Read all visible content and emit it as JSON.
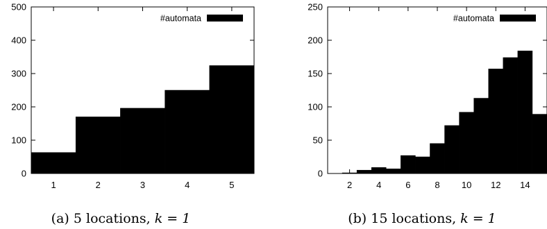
{
  "chart_data": [
    {
      "type": "bar",
      "caption": "(a) 5 locations,",
      "caption_math": "k = 1",
      "legend": "#automata",
      "legend_position": "top-right",
      "grid": false,
      "xlim": [
        0.5,
        5.5
      ],
      "ylim": [
        0,
        500
      ],
      "xticks": [
        1,
        2,
        3,
        4,
        5
      ],
      "yticks": [
        0,
        100,
        200,
        300,
        400,
        500
      ],
      "x": [
        1,
        2,
        3,
        4,
        5
      ],
      "values": [
        63,
        170,
        196,
        250,
        324
      ],
      "bar_color": "#000000"
    },
    {
      "type": "bar",
      "caption": "(b) 15 locations,",
      "caption_math": "k = 1",
      "legend": "#automata",
      "legend_position": "top-right",
      "grid": false,
      "xlim": [
        0.5,
        15.5
      ],
      "ylim": [
        0,
        250
      ],
      "xticks": [
        2,
        4,
        6,
        8,
        10,
        12,
        14
      ],
      "yticks": [
        0,
        50,
        100,
        150,
        200,
        250
      ],
      "x": [
        1,
        2,
        3,
        4,
        5,
        6,
        7,
        8,
        9,
        10,
        11,
        12,
        13,
        14,
        15
      ],
      "values": [
        0,
        1,
        5,
        9,
        7,
        27,
        25,
        45,
        72,
        92,
        113,
        157,
        174,
        184,
        89
      ],
      "bar_color": "#000000"
    }
  ]
}
